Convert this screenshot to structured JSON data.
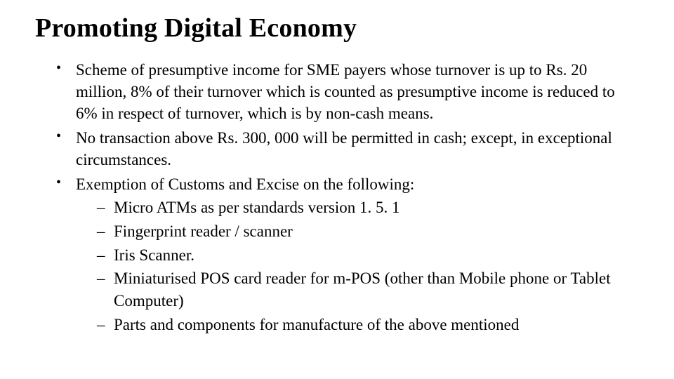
{
  "title": "Promoting Digital Economy",
  "bullets": {
    "b1": "Scheme of presumptive income for SME payers whose turnover is up to Rs. 20 million, 8% of their turnover which is counted as presumptive income is reduced to 6% in respect of turnover, which is by non-cash means.",
    "b2": "No transaction above Rs. 300, 000 will be permitted in cash; except, in exceptional circumstances.",
    "b3": "Exemption of Customs and Excise on the following:",
    "b3_sub": {
      "s1": "Micro ATMs as per standards version 1. 5. 1",
      "s2": "Fingerprint reader / scanner",
      "s3": "Iris Scanner.",
      "s4": "Miniaturised POS card reader for m-POS (other than Mobile phone or Tablet Computer)",
      "s5": "Parts and components for manufacture of the above mentioned"
    }
  },
  "colors": {
    "background": "#ffffff",
    "text": "#000000"
  },
  "typography": {
    "title_fontsize": 38,
    "body_fontsize": 23,
    "font_family": "Times New Roman"
  }
}
